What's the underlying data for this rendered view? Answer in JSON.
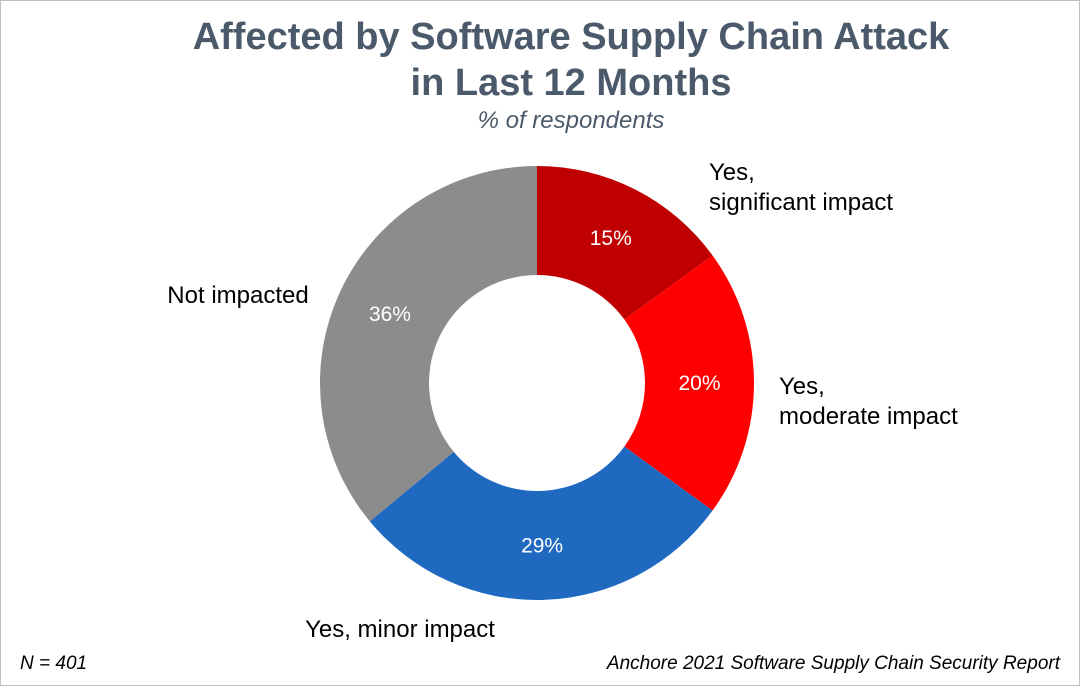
{
  "chart_data": {
    "type": "pie",
    "donut": true,
    "title_lines": [
      "Affected by Software Supply Chain Attack",
      "in Last 12 Months"
    ],
    "subtitle": "% of respondents",
    "categories": [
      {
        "key": "significant",
        "label_lines": [
          "Yes,",
          "significant impact"
        ],
        "value": 15,
        "value_label": "15%",
        "color": "#c00000"
      },
      {
        "key": "moderate",
        "label_lines": [
          "Yes,",
          "moderate impact"
        ],
        "value": 20,
        "value_label": "20%",
        "color": "#ff0000"
      },
      {
        "key": "minor",
        "label_lines": [
          "Yes, minor impact"
        ],
        "value": 29,
        "value_label": "29%",
        "color": "#1f69c1"
      },
      {
        "key": "not-impacted",
        "label_lines": [
          "Not impacted"
        ],
        "value": 36,
        "value_label": "36%",
        "color": "#8c8c8c"
      }
    ]
  },
  "footer": {
    "n_label": "N = 401",
    "source": "Anchore 2021 Software Supply Chain Security Report"
  }
}
